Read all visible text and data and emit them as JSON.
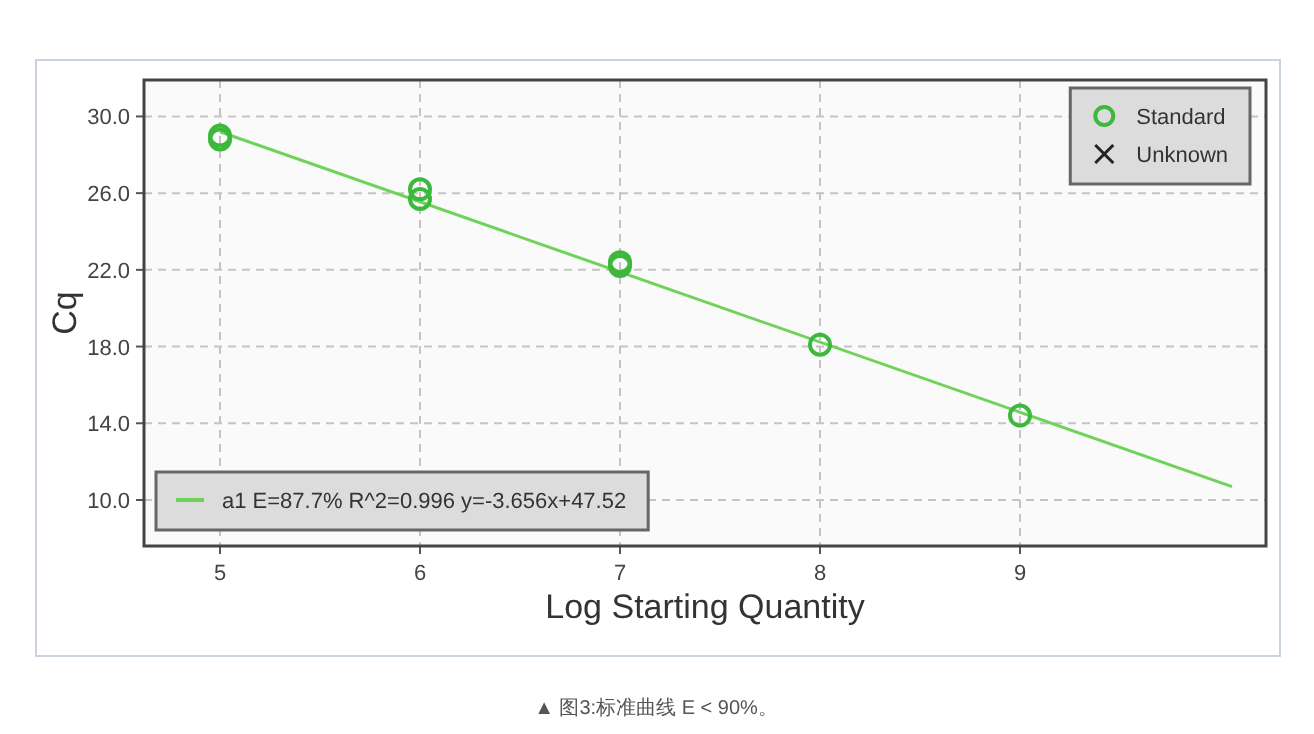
{
  "chart_data": {
    "type": "scatter",
    "xlabel": "Log Starting Quantity",
    "ylabel": "Cq",
    "xlim": [
      4.62,
      10.23
    ],
    "ylim": [
      7.6,
      31.9
    ],
    "xticks": [
      5,
      6,
      7,
      8,
      9
    ],
    "yticks": [
      {
        "value": 10,
        "label": "10.0"
      },
      {
        "value": 14,
        "label": "14.0"
      },
      {
        "value": 18,
        "label": "18.0"
      },
      {
        "value": 22,
        "label": "22.0"
      },
      {
        "value": 26,
        "label": "26.0"
      },
      {
        "value": 30,
        "label": "30.0"
      }
    ],
    "grid": true,
    "legend": "top right",
    "series": [
      {
        "name": "Standard",
        "marker": "circle",
        "color": "#3cb83c",
        "x": [
          5,
          5,
          6,
          6,
          7,
          7,
          8,
          9
        ],
        "values": [
          29.0,
          28.8,
          26.2,
          25.7,
          22.4,
          22.2,
          18.1,
          14.4
        ]
      },
      {
        "name": "Unknown",
        "marker": "cross",
        "color": "#222222"
      },
      {
        "name": "a1 E=87.7% R^2=0.996 y=-3.656x+47.52",
        "type": "line",
        "marker": "none",
        "line_style": "solid",
        "color": "#6fd35a",
        "x": [
          5,
          10.06
        ],
        "values": [
          29.2,
          10.7
        ]
      }
    ],
    "annotations": [
      "▲ 图3:标准曲线 E < 90%。"
    ]
  }
}
